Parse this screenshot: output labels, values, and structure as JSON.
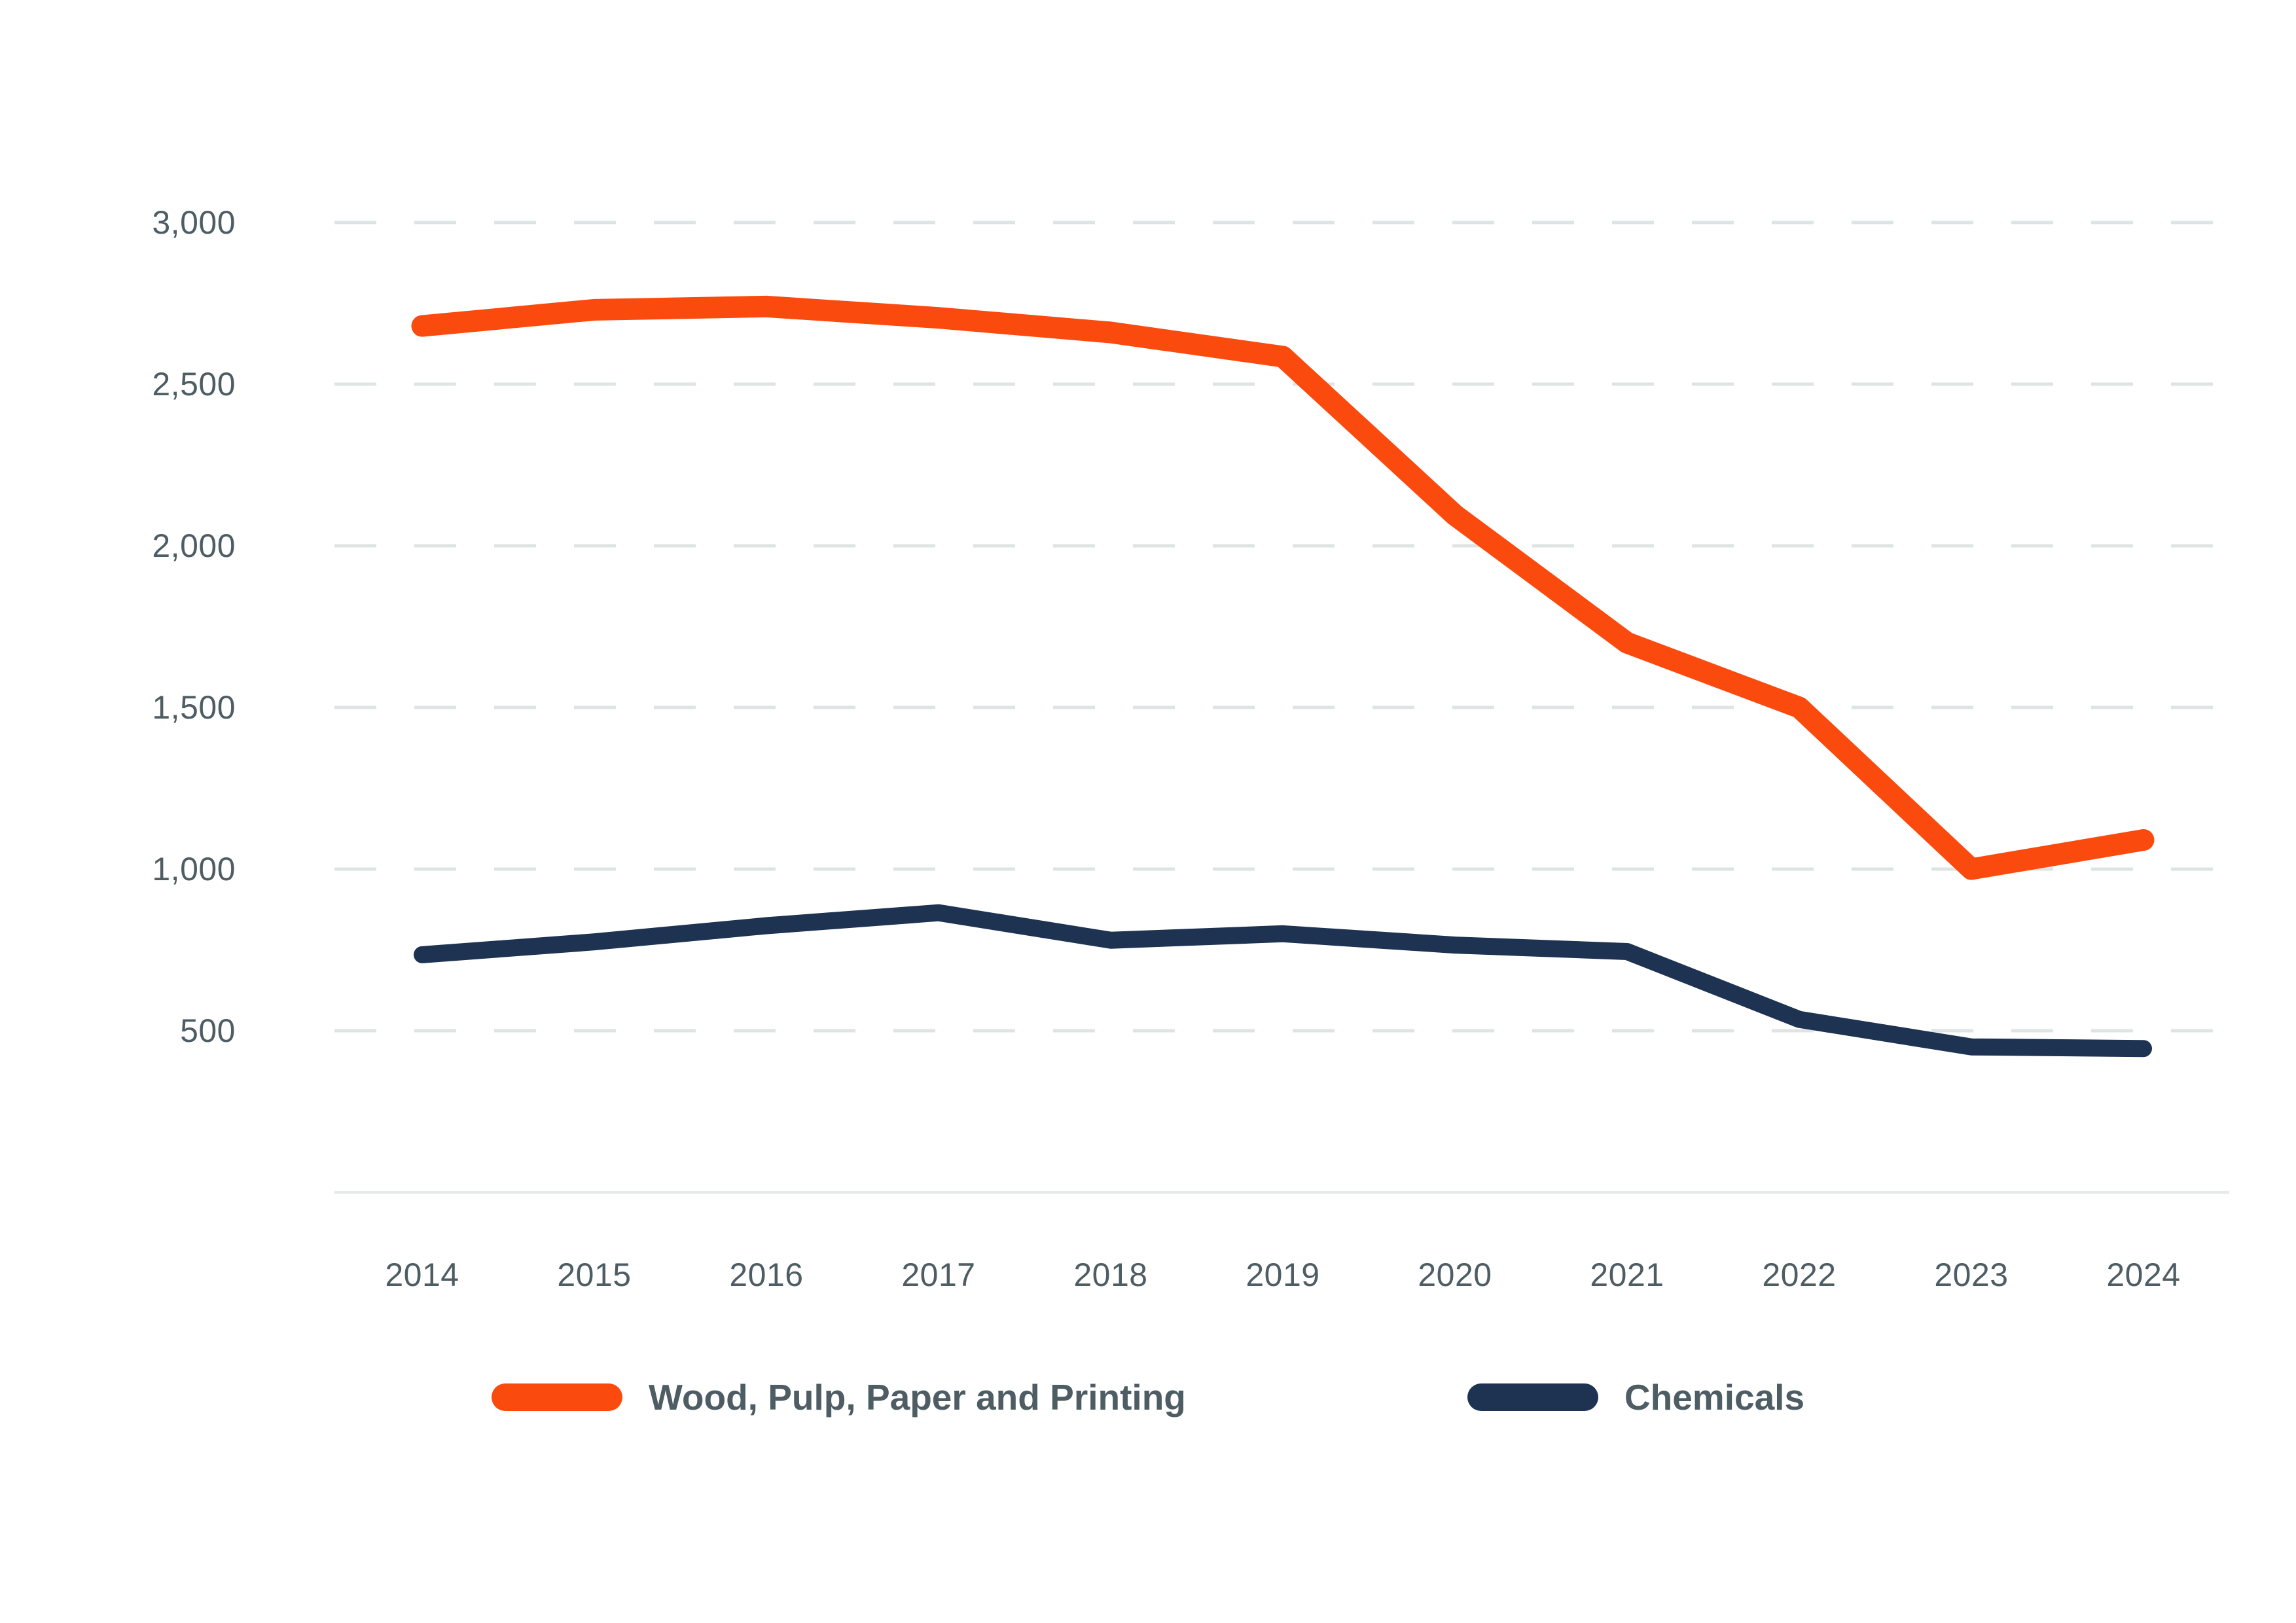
{
  "chart_data": {
    "type": "line",
    "title": "",
    "categories": [
      "2014",
      "2015",
      "2016",
      "2017",
      "2018",
      "2019",
      "2020",
      "2021",
      "2022",
      "2023",
      "2024"
    ],
    "series": [
      {
        "name": "Wood, Pulp, Paper and Printing",
        "color": "#FB4A0E",
        "values": [
          2680,
          2730,
          2740,
          2705,
          2660,
          2585,
          2095,
          1700,
          1500,
          1000,
          1090
        ]
      },
      {
        "name": "Chemicals",
        "color": "#1E3252",
        "values": [
          735,
          775,
          825,
          865,
          780,
          800,
          765,
          745,
          535,
          450,
          445
        ]
      }
    ],
    "xlabel": "",
    "ylabel": "",
    "ylim": [
      0,
      3000
    ],
    "yticks": [
      {
        "value": 500,
        "label": "500"
      },
      {
        "value": 1000,
        "label": "1,000"
      },
      {
        "value": 1500,
        "label": "1,500"
      },
      {
        "value": 2000,
        "label": "2,000"
      },
      {
        "value": 2500,
        "label": "2,500"
      },
      {
        "value": 3000,
        "label": "3,000"
      }
    ],
    "grid": "horizontal-dashed",
    "legend_position": "bottom"
  },
  "styles": {
    "background": "#FFFFFF",
    "grid_color": "#DEE4E3",
    "axis_line_color": "#E7EAEA",
    "tick_text_color": "#4E5D63",
    "legend_text_color": "#4E5D63",
    "series_colors": [
      "#FB4A0E",
      "#1E3252"
    ]
  }
}
